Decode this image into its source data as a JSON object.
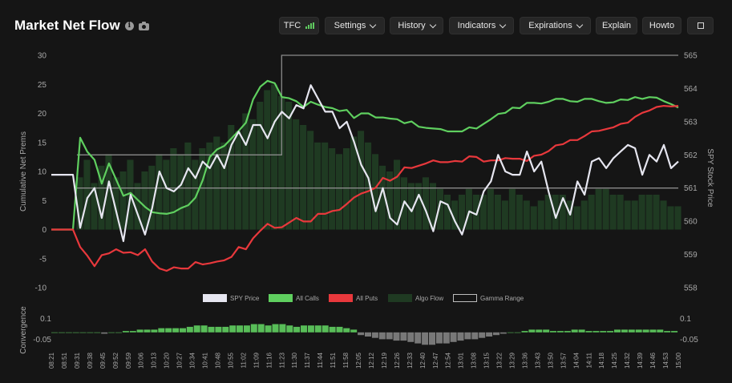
{
  "header": {
    "title": "Market Net Flow",
    "info_icon": "info-icon",
    "camera_icon": "camera-icon"
  },
  "toolbar": {
    "tfc_label": "TFC",
    "settings_label": "Settings",
    "history_label": "History",
    "indicators_label": "Indicators",
    "expirations_label": "Expirations",
    "explain_label": "Explain",
    "howto_label": "Howto",
    "expand_icon": "expand-icon"
  },
  "colors": {
    "background": "#151515",
    "spy_price": "#e6e6f0",
    "all_calls": "#5fcf5f",
    "all_puts": "#e8383c",
    "algo_flow": "#1f3a22",
    "gamma_range": "#8a8a8a",
    "convergence_pos": "#5fcf5f",
    "convergence_neg": "#9a9a9a"
  },
  "chart_data": [
    {
      "type": "line",
      "ylabel": "Cumulative Net Prems",
      "y2label": "SPY Stock Price",
      "ylim": [
        -10,
        30
      ],
      "y_ticks": [
        "30",
        "25",
        "20",
        "15",
        "10",
        "5",
        "0",
        "-5",
        "-10"
      ],
      "y2lim": [
        558,
        565
      ],
      "y2_ticks": [
        "565",
        "564",
        "563",
        "562",
        "561",
        "560",
        "559",
        "558"
      ],
      "x_ticks": [
        "08:21",
        "08:51",
        "09:31",
        "09:38",
        "09:45",
        "09:52",
        "09:59",
        "10:06",
        "10:13",
        "10:20",
        "10:27",
        "10:34",
        "10:41",
        "10:48",
        "10:55",
        "11:02",
        "11:09",
        "11:16",
        "11:23",
        "11:30",
        "11:37",
        "11:44",
        "11:51",
        "11:58",
        "12:05",
        "12:12",
        "12:19",
        "12:26",
        "12:33",
        "12:40",
        "12:47",
        "12:54",
        "13:01",
        "13:08",
        "13:15",
        "13:22",
        "13:29",
        "13:36",
        "13:43",
        "13:50",
        "13:57",
        "14:04",
        "14:11",
        "14:18",
        "14:25",
        "14:32",
        "14:39",
        "14:46",
        "14:53",
        "15:00"
      ],
      "legend": [
        "SPY Price",
        "All Calls",
        "All Puts",
        "Algo Flow",
        "Gamma Range"
      ],
      "legend_position": "bottom",
      "grid": false,
      "series": [
        {
          "name": "SPY Price",
          "axis": "right",
          "values": [
            561.4,
            561.4,
            561.4,
            561.4,
            559.8,
            560.7,
            561.0,
            560.1,
            561.2,
            560.3,
            559.4,
            560.8,
            560.2,
            559.6,
            560.4,
            561.5,
            561.0,
            560.9,
            561.1,
            561.6,
            561.3,
            561.8,
            561.6,
            562.0,
            561.6,
            562.3,
            562.7,
            562.3,
            562.9,
            562.9,
            562.5,
            563.0,
            563.3,
            563.1,
            563.5,
            563.4,
            564.1,
            563.7,
            563.3,
            563.3,
            562.8,
            563.0,
            562.4,
            561.7,
            561.3,
            560.3,
            561.0,
            560.1,
            559.9,
            560.6,
            560.3,
            560.8,
            560.3,
            559.7,
            560.6,
            560.5,
            560.0,
            559.6,
            560.3,
            560.2,
            560.9,
            561.2,
            562.0,
            561.5,
            561.4,
            561.4,
            562.1,
            561.5,
            561.8,
            560.9,
            560.1,
            560.7,
            560.2,
            561.2,
            560.8,
            561.8,
            561.9,
            561.6,
            561.9,
            562.1,
            562.3,
            562.2,
            561.4,
            562.0,
            561.8,
            562.3,
            561.6,
            561.8
          ]
        },
        {
          "name": "All Calls",
          "axis": "left",
          "values": [
            0,
            0,
            0,
            0,
            15.8,
            13.4,
            12.0,
            7.9,
            11.4,
            8.6,
            5.8,
            6.3,
            5.1,
            3.9,
            3.0,
            2.8,
            2.7,
            3.0,
            3.7,
            4.2,
            5.5,
            8.5,
            12.5,
            13.8,
            14.4,
            15.7,
            17.0,
            18.4,
            22.4,
            24.6,
            25.6,
            25.2,
            22.8,
            22.6,
            22.1,
            21.1,
            22.0,
            21.5,
            21.1,
            20.9,
            20.4,
            20.6,
            19.2,
            20.0,
            20.0,
            19.3,
            19.3,
            19.1,
            19.0,
            18.3,
            18.6,
            17.7,
            17.5,
            17.4,
            17.3,
            16.9,
            16.9,
            16.9,
            17.6,
            17.4,
            18.2,
            19.0,
            19.9,
            20.1,
            21.0,
            20.9,
            21.8,
            21.8,
            21.7,
            22.0,
            22.5,
            22.5,
            22.1,
            22.0,
            22.5,
            22.5,
            22.1,
            21.8,
            21.9,
            22.4,
            22.3,
            22.8,
            22.5,
            22.8,
            22.7,
            22.1,
            21.6,
            21.0
          ]
        },
        {
          "name": "All Puts",
          "axis": "left",
          "values": [
            0,
            0,
            0,
            0,
            -3.0,
            -4.5,
            -6.3,
            -4.4,
            -4.1,
            -3.4,
            -4.0,
            -3.9,
            -4.4,
            -3.4,
            -5.5,
            -6.7,
            -7.1,
            -6.5,
            -6.7,
            -6.7,
            -5.6,
            -6.0,
            -5.8,
            -5.5,
            -5.3,
            -4.7,
            -3.0,
            -3.4,
            -1.5,
            -0.2,
            1.0,
            0.3,
            0.4,
            1.2,
            2.0,
            1.4,
            1.4,
            2.7,
            2.7,
            3.2,
            3.4,
            4.4,
            5.5,
            6.2,
            6.6,
            7.2,
            8.9,
            8.4,
            9.1,
            10.7,
            10.6,
            11.0,
            11.4,
            11.9,
            11.6,
            11.6,
            11.8,
            11.7,
            12.6,
            12.5,
            11.7,
            11.9,
            11.9,
            12.3,
            12.2,
            12.2,
            11.8,
            12.7,
            12.9,
            13.5,
            14.5,
            14.7,
            15.4,
            15.4,
            16.1,
            16.9,
            17.0,
            17.3,
            17.6,
            18.2,
            18.4,
            19.4,
            20.1,
            20.5,
            21.1,
            21.3,
            21.2,
            21.3
          ]
        },
        {
          "name": "Algo Flow",
          "axis": "left",
          "values": [
            0,
            0,
            0,
            0,
            9,
            12,
            8,
            11,
            13,
            9,
            10,
            12,
            8,
            10,
            11,
            13,
            12,
            14,
            13,
            15,
            12,
            14,
            15,
            16,
            15,
            18,
            17,
            20,
            19,
            22,
            24,
            25,
            23,
            22,
            19,
            18,
            17,
            15,
            15,
            14,
            13,
            14,
            16,
            17,
            15,
            13,
            11,
            10,
            12,
            9,
            8,
            8,
            9,
            8,
            7,
            6,
            5,
            6,
            7,
            6,
            6,
            7,
            6,
            5,
            7,
            6,
            5,
            4,
            5,
            6,
            6,
            6,
            5,
            4,
            5,
            6,
            7,
            7,
            6,
            6,
            5,
            5,
            6,
            6,
            6,
            5,
            4,
            4
          ]
        },
        {
          "name": "Gamma Range",
          "axis": "right",
          "values": [
            [
              561.0,
              562.0
            ],
            [
              561.0,
              562.0
            ],
            [
              561.0,
              565.0
            ],
            [
              561.0,
              565.0
            ]
          ],
          "x_breaks": [
            "09:31",
            "11:23",
            "11:23",
            "15:00"
          ]
        }
      ]
    },
    {
      "type": "bar",
      "ylabel": "Convergence",
      "y_ticks": [
        "0.1",
        "-0.05"
      ],
      "y2_ticks": [
        "0.1",
        "-0.05"
      ],
      "ylim": [
        -0.1,
        0.15
      ],
      "values": [
        0,
        0,
        0,
        0,
        0.0,
        0.0,
        0.0,
        -0.01,
        0.0,
        0.0,
        0.01,
        0.01,
        0.02,
        0.02,
        0.02,
        0.03,
        0.03,
        0.03,
        0.03,
        0.04,
        0.05,
        0.05,
        0.04,
        0.04,
        0.04,
        0.05,
        0.05,
        0.05,
        0.06,
        0.06,
        0.05,
        0.06,
        0.06,
        0.05,
        0.04,
        0.05,
        0.05,
        0.05,
        0.05,
        0.04,
        0.04,
        0.03,
        0.02,
        -0.02,
        -0.03,
        -0.04,
        -0.05,
        -0.05,
        -0.06,
        -0.06,
        -0.07,
        -0.08,
        -0.09,
        -0.09,
        -0.08,
        -0.08,
        -0.07,
        -0.06,
        -0.05,
        -0.05,
        -0.04,
        -0.03,
        -0.02,
        -0.01,
        0.0,
        0.0,
        0.01,
        0.02,
        0.02,
        0.02,
        0.01,
        0.01,
        0.01,
        0.02,
        0.02,
        0.01,
        0.01,
        0.01,
        0.01,
        0.02,
        0.02,
        0.02,
        0.02,
        0.02,
        0.02,
        0.02,
        0.01,
        0.01
      ]
    }
  ]
}
